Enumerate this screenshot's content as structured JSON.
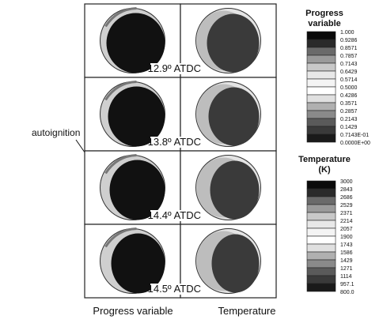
{
  "rows": [
    {
      "label": "12.9º ATDC"
    },
    {
      "label": "13.8º ATDC"
    },
    {
      "label": "14.4º ATDC"
    },
    {
      "label": "14.5º ATDC"
    }
  ],
  "annotation": "autoignition",
  "columns": [
    "Progress variable",
    "Temperature"
  ],
  "colorbars": [
    {
      "title": [
        "Progress",
        "variable"
      ],
      "labels": [
        "1.000",
        "0.9286",
        "0.8571",
        "0.7857",
        "0.7143",
        "0.6429",
        "0.5714",
        "0.5000",
        "0.4286",
        "0.3571",
        "0.2857",
        "0.2143",
        "0.1429",
        "0.7143E-01",
        "0.0000E+00"
      ]
    },
    {
      "title": [
        "Temperature",
        "(K)"
      ],
      "labels": [
        "3000",
        "2843",
        "2686",
        "2529",
        "2371",
        "2214",
        "2057",
        "1900",
        "1743",
        "1586",
        "1429",
        "1271",
        "1114",
        "957.1",
        "800.0"
      ]
    }
  ]
}
